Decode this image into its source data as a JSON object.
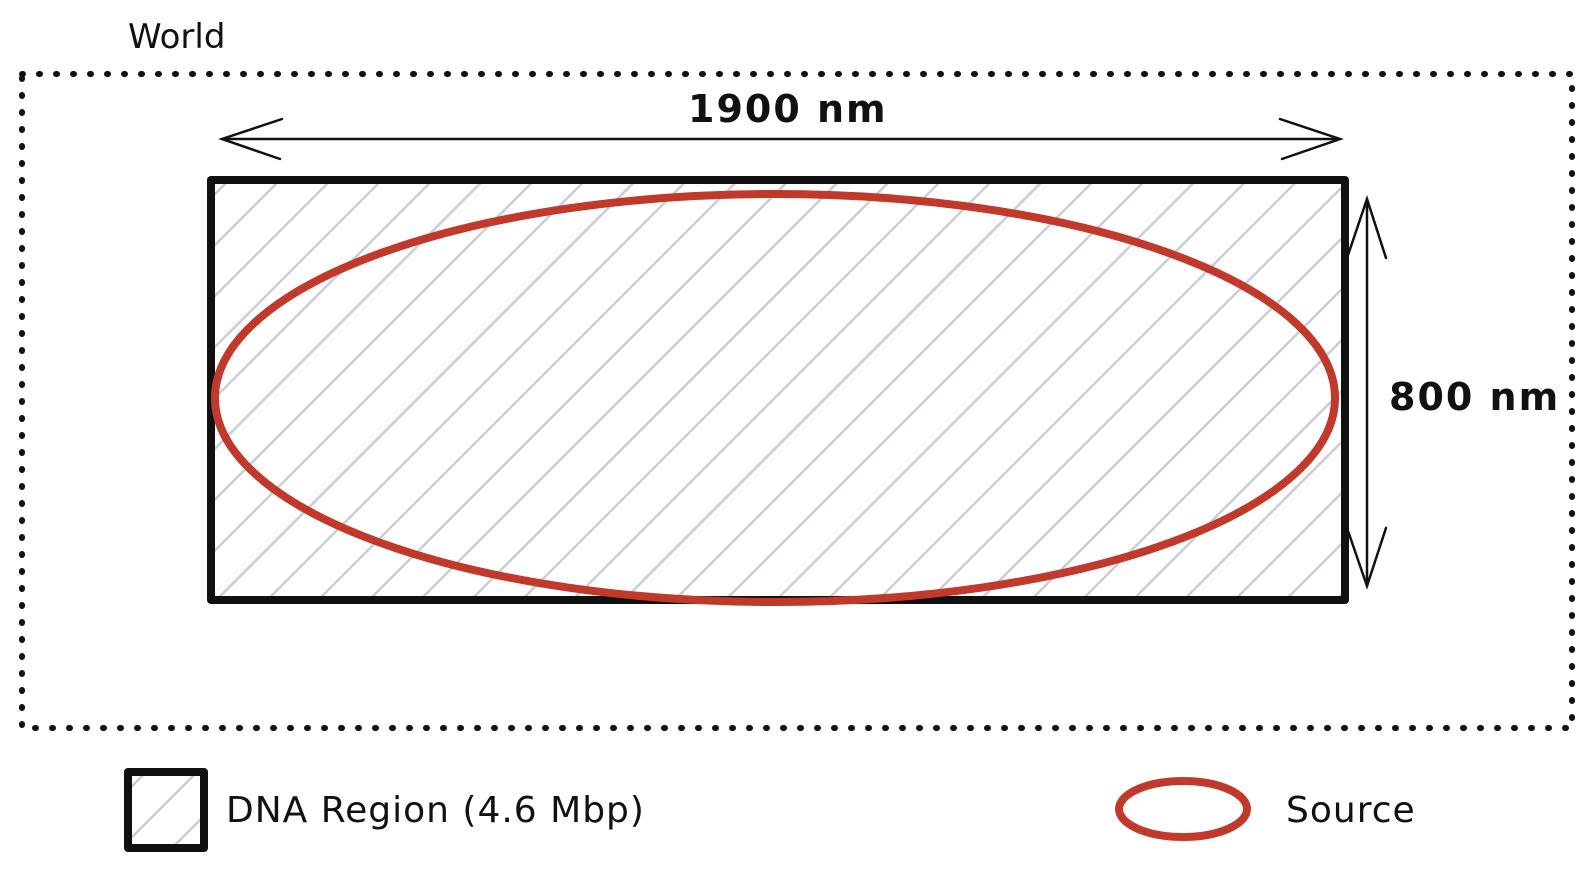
{
  "world": {
    "label": "World"
  },
  "dimensions": {
    "width_label": "1900 nm",
    "height_label": "800 nm"
  },
  "legend": {
    "dna_region_label": "DNA Region (4.6 Mbp)",
    "source_label": "Source"
  },
  "colors": {
    "outline": "#111111",
    "hatch": "#c9ced6",
    "source": "#c0392b"
  }
}
